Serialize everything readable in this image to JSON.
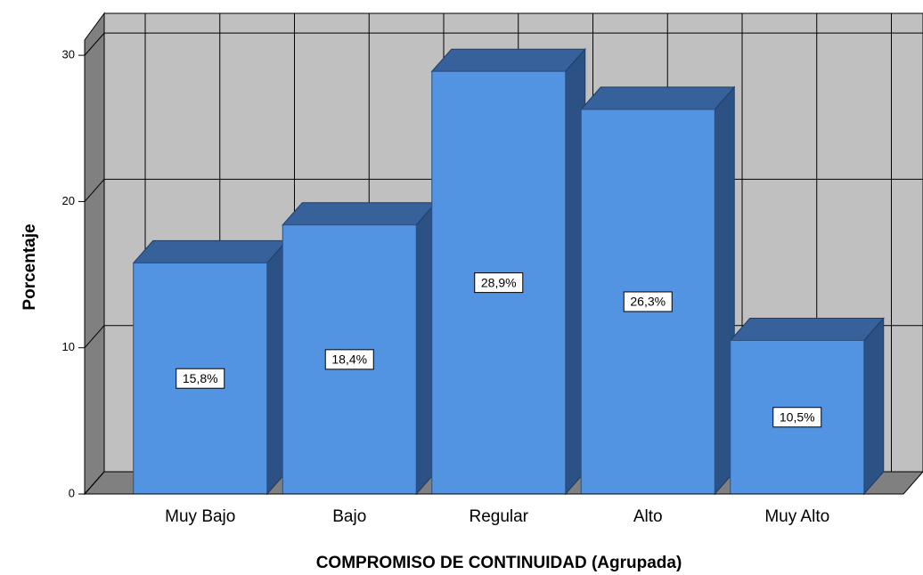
{
  "chart_data": {
    "type": "bar",
    "categories": [
      "Muy Bajo",
      "Bajo",
      "Regular",
      "Alto",
      "Muy Alto"
    ],
    "values": [
      15.8,
      18.4,
      28.9,
      26.3,
      10.5
    ],
    "value_labels": [
      "15,8%",
      "18,4%",
      "28,9%",
      "26,3%",
      "10,5%"
    ],
    "color": "#5294e2",
    "x_label": "COMPROMISO DE CONTINUIDAD (Agrupada)",
    "y_label": "Porcentaje",
    "ylim": [
      0,
      31
    ],
    "yticks": [
      0,
      10,
      20,
      30
    ],
    "grid": true
  }
}
